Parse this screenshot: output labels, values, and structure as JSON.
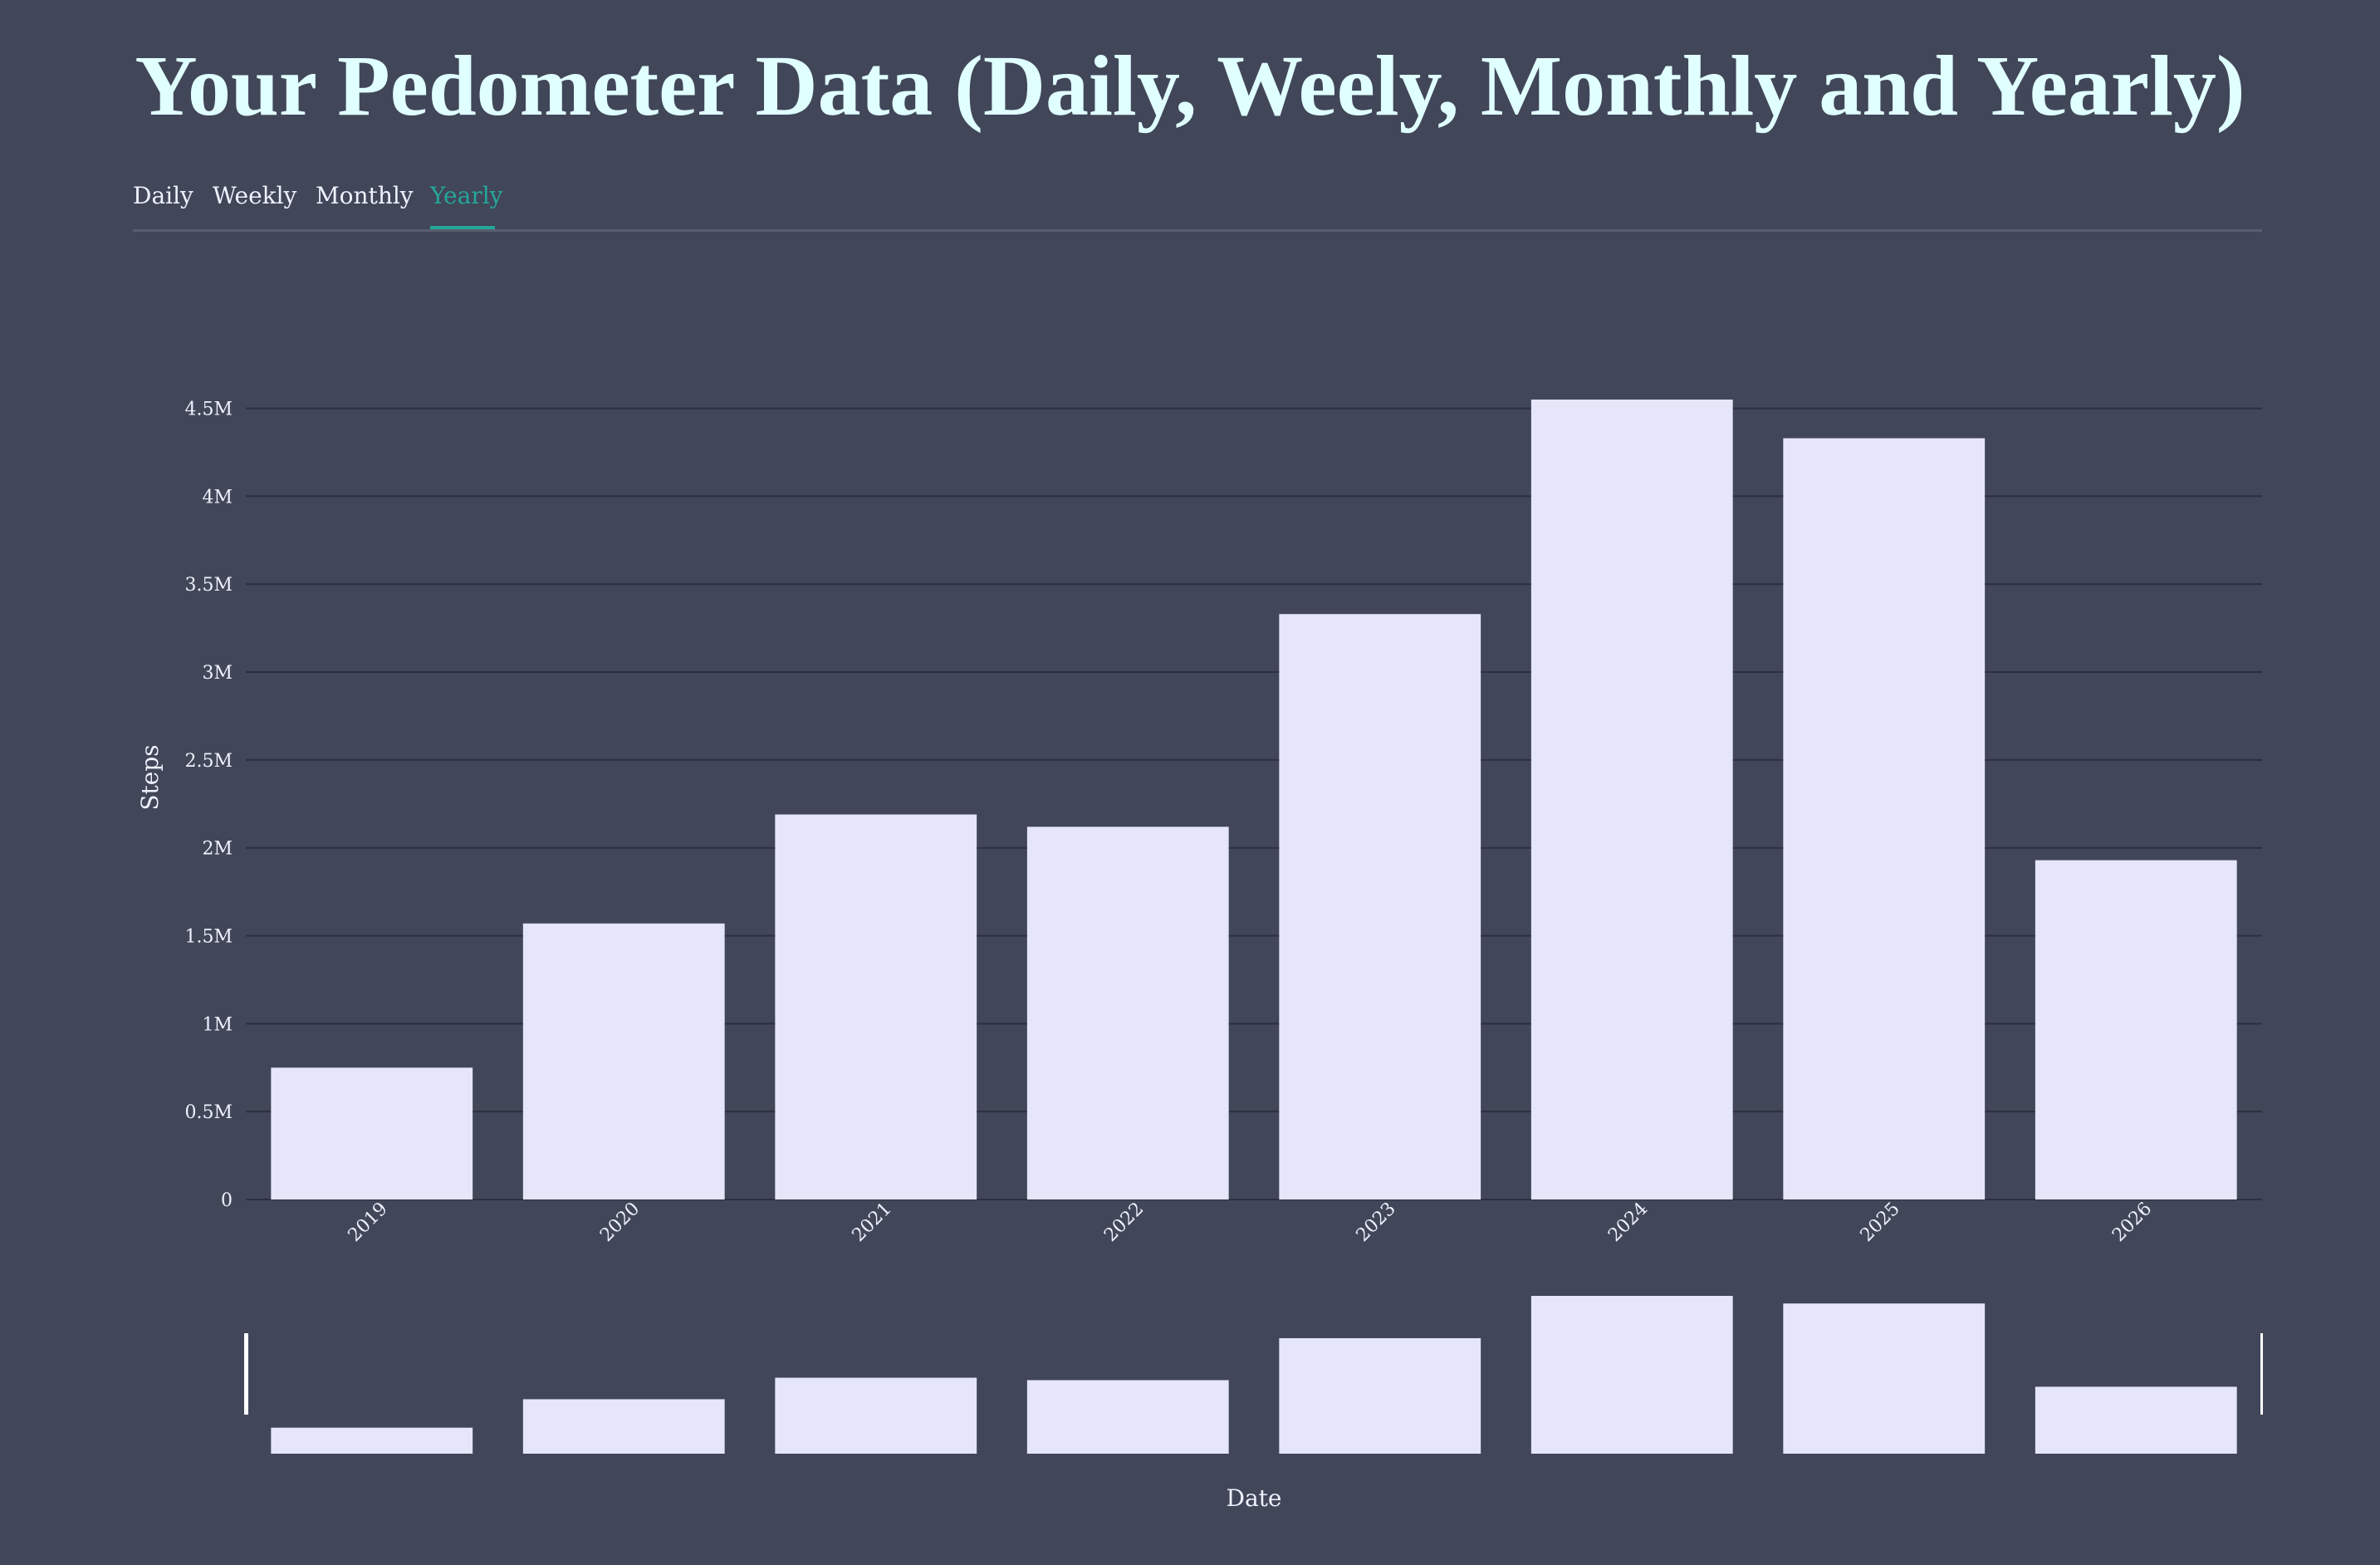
{
  "page": {
    "title": "Your Pedometer Data (Daily, Weely, Monthly and Yearly)"
  },
  "tabs": [
    {
      "label": "Daily",
      "active": false
    },
    {
      "label": "Weekly",
      "active": false
    },
    {
      "label": "Monthly",
      "active": false
    },
    {
      "label": "Yearly",
      "active": true
    }
  ],
  "colors": {
    "background": "#414659",
    "title": "#e0ffff",
    "bar": "#e6e6fa",
    "accent": "#26a69a",
    "text": "#eef2ff",
    "grid": "#2b2f3e"
  },
  "chart_data": {
    "type": "bar",
    "categories": [
      "2019",
      "2020",
      "2021",
      "2022",
      "2023",
      "2024",
      "2025",
      "2026"
    ],
    "values": [
      750000,
      1570000,
      2190000,
      2120000,
      3330000,
      4550000,
      4330000,
      1930000
    ],
    "xlabel": "Date",
    "ylabel": "Steps",
    "ylim": [
      0,
      4550000
    ],
    "yticks": [
      0,
      500000,
      1000000,
      1500000,
      2000000,
      2500000,
      3000000,
      3500000,
      4000000,
      4500000
    ],
    "ytick_labels": [
      "0",
      "0.5M",
      "1M",
      "1.5M",
      "2M",
      "2.5M",
      "3M",
      "3.5M",
      "4M",
      "4.5M"
    ],
    "grid": true,
    "range_slider": true
  }
}
